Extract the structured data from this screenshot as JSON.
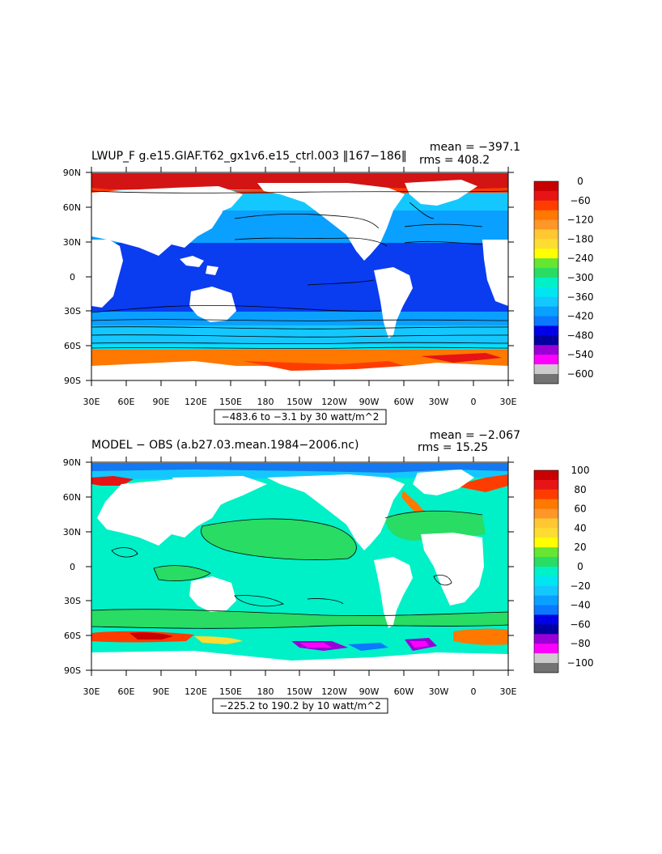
{
  "chart_data": [
    {
      "type": "heatmap",
      "title": "LWUP_F g.e15.GIAF.T62_gx1v6.e15_ctrl.003 ‖167−186‖",
      "stats": {
        "mean": "mean = −397.1",
        "rms": "rms = 408.2"
      },
      "range_label": "−483.6 to −3.1 by 30 watt/m^2",
      "x_ticks": [
        "30E",
        "60E",
        "90E",
        "120E",
        "150E",
        "180",
        "150W",
        "120W",
        "90W",
        "60W",
        "30W",
        "0",
        "30E"
      ],
      "y_ticks": [
        "90N",
        "60N",
        "30N",
        "0",
        "30S",
        "60S",
        "90S"
      ],
      "xlim": [
        30,
        390
      ],
      "ylim": [
        -90,
        90
      ],
      "colorbar": {
        "labels": [
          "0",
          "−60",
          "−120",
          "−180",
          "−240",
          "−300",
          "−360",
          "−420",
          "−480",
          "−540",
          "−600"
        ],
        "colors": [
          "#c80000",
          "#e61414",
          "#ff3c00",
          "#ff7800",
          "#ff9628",
          "#ffc832",
          "#ffdc32",
          "#ffff00",
          "#64e632",
          "#28dc64",
          "#00f0c8",
          "#00e6f0",
          "#14c8ff",
          "#0aa0ff",
          "#0a78ff",
          "#0000e6",
          "#0000a0",
          "#9a00d6",
          "#ff00ff",
          "#cccccc",
          "#737373"
        ]
      }
    },
    {
      "type": "heatmap",
      "title": "MODEL − OBS (a.b27.03.mean.1984−2006.nc)",
      "stats": {
        "mean": "mean = −2.067",
        "rms": "rms = 15.25"
      },
      "range_label": "−225.2 to 190.2 by 10 watt/m^2",
      "x_ticks": [
        "30E",
        "60E",
        "90E",
        "120E",
        "150E",
        "180",
        "150W",
        "120W",
        "90W",
        "60W",
        "30W",
        "0",
        "30E"
      ],
      "y_ticks": [
        "90N",
        "60N",
        "30N",
        "0",
        "30S",
        "60S",
        "90S"
      ],
      "xlim": [
        30,
        390
      ],
      "ylim": [
        -90,
        90
      ],
      "colorbar": {
        "labels": [
          "100",
          "80",
          "60",
          "40",
          "20",
          "0",
          "−20",
          "−40",
          "−60",
          "−80",
          "−100"
        ],
        "colors": [
          "#c80000",
          "#e61414",
          "#ff3c00",
          "#ff7800",
          "#ff9628",
          "#ffc832",
          "#ffdc32",
          "#ffff00",
          "#64e632",
          "#28dc64",
          "#00f0c8",
          "#00e6f0",
          "#14c8ff",
          "#0aa0ff",
          "#0a78ff",
          "#0000e6",
          "#0000a0",
          "#9a00d6",
          "#ff00ff",
          "#cccccc",
          "#737373"
        ]
      }
    }
  ]
}
